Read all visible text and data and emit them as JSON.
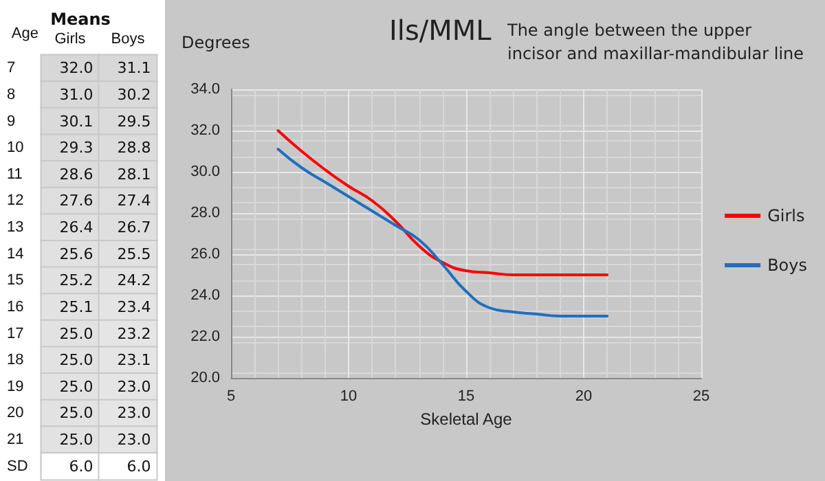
{
  "chart_data": [
    {
      "type": "heatmap",
      "title": "Means",
      "ylabel": "Age",
      "categories": [
        "Girls",
        "Boys"
      ],
      "y_categories": [
        "7",
        "8",
        "9",
        "10",
        "11",
        "12",
        "13",
        "14",
        "15",
        "16",
        "17",
        "18",
        "19",
        "20",
        "21",
        "SD"
      ],
      "cells": [
        [
          32.0,
          31.1
        ],
        [
          31.0,
          30.2
        ],
        [
          30.1,
          29.5
        ],
        [
          29.3,
          28.8
        ],
        [
          28.6,
          28.1
        ],
        [
          27.6,
          27.4
        ],
        [
          26.4,
          26.7
        ],
        [
          25.6,
          25.5
        ],
        [
          25.2,
          24.2
        ],
        [
          25.1,
          23.4
        ],
        [
          25.0,
          23.2
        ],
        [
          25.0,
          23.1
        ],
        [
          25.0,
          23.0
        ],
        [
          25.0,
          23.0
        ],
        [
          25.0,
          23.0
        ],
        [
          6.0,
          6.0
        ]
      ],
      "cell_labels": [
        [
          "32.0",
          "31.1"
        ],
        [
          "31.0",
          "30.2"
        ],
        [
          "30.1",
          "29.5"
        ],
        [
          "29.3",
          "28.8"
        ],
        [
          "28.6",
          "28.1"
        ],
        [
          "27.6",
          "27.4"
        ],
        [
          "26.4",
          "26.7"
        ],
        [
          "25.6",
          "25.5"
        ],
        [
          "25.2",
          "24.2"
        ],
        [
          "25.1",
          "23.4"
        ],
        [
          "25.0",
          "23.2"
        ],
        [
          "25.0",
          "23.1"
        ],
        [
          "25.0",
          "23.0"
        ],
        [
          "25.0",
          "23.0"
        ],
        [
          "25.0",
          "23.0"
        ],
        [
          "6.0",
          "6.0"
        ]
      ]
    },
    {
      "type": "line",
      "title": "Ils/MML",
      "subtitle": "The angle between the upper incisor and maxillar-mandibular line",
      "xlabel": "Skeletal Age",
      "ylabel": "Degrees",
      "x": [
        7,
        8,
        9,
        10,
        11,
        12,
        13,
        14,
        15,
        16,
        17,
        18,
        19,
        20,
        21
      ],
      "series": [
        {
          "name": "Girls",
          "color": "#ff0000",
          "values": [
            32.0,
            31.0,
            30.1,
            29.3,
            28.6,
            27.6,
            26.4,
            25.6,
            25.2,
            25.1,
            25.0,
            25.0,
            25.0,
            25.0,
            25.0
          ]
        },
        {
          "name": "Boys",
          "color": "#1f6fbf",
          "values": [
            31.1,
            30.2,
            29.5,
            28.8,
            28.1,
            27.4,
            26.7,
            25.5,
            24.2,
            23.4,
            23.2,
            23.1,
            23.0,
            23.0,
            23.0
          ]
        }
      ],
      "xlim": [
        5,
        25
      ],
      "xticks": [
        5,
        10,
        15,
        20,
        25
      ],
      "ylim": [
        20,
        34
      ],
      "yticks": [
        {
          "value": 20,
          "label": "20.0"
        },
        {
          "value": 22,
          "label": "22.0"
        },
        {
          "value": 24,
          "label": "24.0"
        },
        {
          "value": 26,
          "label": "26.0"
        },
        {
          "value": 28,
          "label": "28.0"
        },
        {
          "value": 30,
          "label": "30.0"
        },
        {
          "value": 32,
          "label": "32.0"
        },
        {
          "value": 34,
          "label": "34.0"
        }
      ],
      "grid": true,
      "legend": "right",
      "marker": "none",
      "line_style": "solid"
    }
  ]
}
